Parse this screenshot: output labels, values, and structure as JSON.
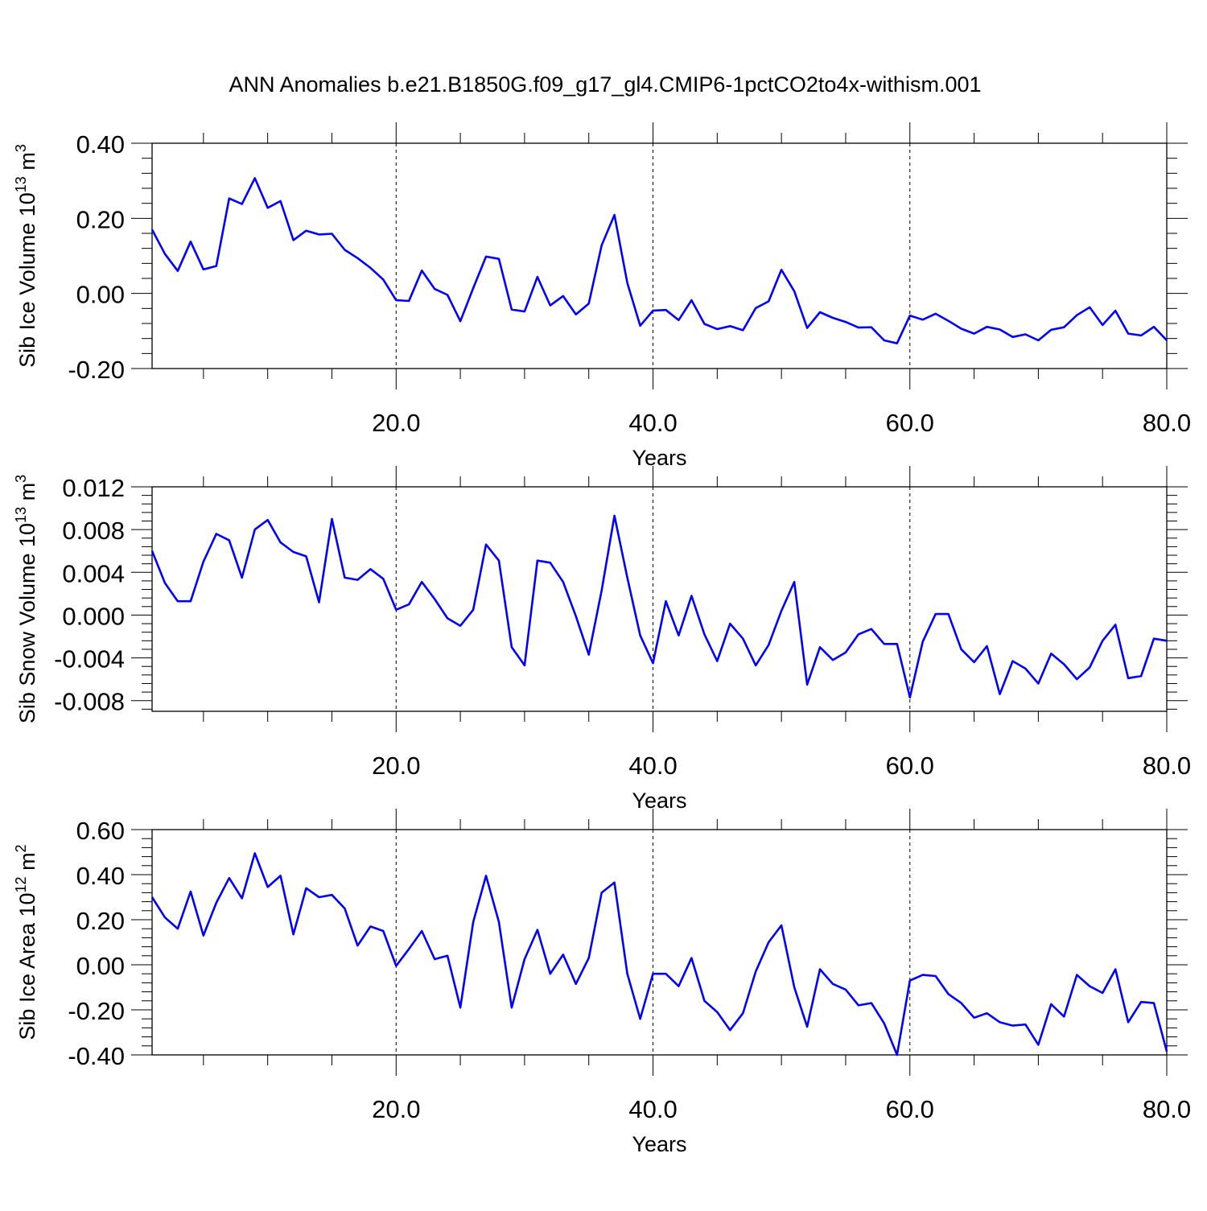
{
  "title": "ANN Anomalies b.e21.B1850G.f09_g17_gl4.CMIP6-1pctCO2to4x-withism.001",
  "line_color": "#0000ff",
  "chart_data": [
    {
      "type": "line",
      "ylabel": {
        "main": "Sib Ice Volume 10",
        "sup": "13",
        "unit": " m",
        "unit_sup": "3"
      },
      "xlabel": "Years",
      "xlim": [
        1,
        80
      ],
      "ylim": [
        -0.2,
        0.4
      ],
      "yticks": [
        -0.2,
        0.0,
        0.2,
        0.4
      ],
      "ytick_labels": [
        "-0.20",
        "0.00",
        "0.20",
        "0.40"
      ],
      "xticks": [
        20,
        40,
        60,
        80
      ],
      "xtick_labels": [
        "20.0",
        "40.0",
        "60.0",
        "80.0"
      ],
      "grid": "vertical dashed at major x ticks",
      "series": [
        {
          "x": [
            1,
            2,
            3,
            4,
            5,
            6,
            7,
            8,
            9,
            10,
            11,
            12,
            13,
            14,
            15,
            16,
            17,
            18,
            19,
            20,
            21,
            22,
            23,
            24,
            25,
            26,
            27,
            28,
            29,
            30,
            31,
            32,
            33,
            34,
            35,
            36,
            37,
            38,
            39,
            40,
            41,
            42,
            43,
            44,
            45,
            46,
            47,
            48,
            49,
            50,
            51,
            52,
            53,
            54,
            55,
            56,
            57,
            58,
            59,
            60,
            61,
            62,
            63,
            64,
            65,
            66,
            67,
            68,
            69,
            70,
            71,
            72,
            73,
            74,
            75,
            76,
            77,
            78,
            79,
            80
          ],
          "y": [
            0.17,
            0.105,
            0.06,
            0.138,
            0.064,
            0.073,
            0.253,
            0.238,
            0.307,
            0.228,
            0.246,
            0.142,
            0.167,
            0.157,
            0.159,
            0.116,
            0.094,
            0.068,
            0.037,
            -0.018,
            -0.02,
            0.061,
            0.012,
            -0.004,
            -0.074,
            0.014,
            0.098,
            0.092,
            -0.043,
            -0.048,
            0.044,
            -0.032,
            -0.007,
            -0.056,
            -0.027,
            0.128,
            0.209,
            0.028,
            -0.086,
            -0.046,
            -0.044,
            -0.071,
            -0.018,
            -0.081,
            -0.095,
            -0.087,
            -0.098,
            -0.039,
            -0.021,
            0.063,
            0.006,
            -0.092,
            -0.05,
            -0.065,
            -0.076,
            -0.091,
            -0.09,
            -0.125,
            -0.133,
            -0.059,
            -0.07,
            -0.054,
            -0.073,
            -0.094,
            -0.107,
            -0.089,
            -0.096,
            -0.116,
            -0.109,
            -0.125,
            -0.097,
            -0.09,
            -0.058,
            -0.037,
            -0.084,
            -0.046,
            -0.107,
            -0.112,
            -0.089,
            -0.125
          ]
        }
      ]
    },
    {
      "type": "line",
      "ylabel": {
        "main": "Sib Snow Volume 10",
        "sup": "13",
        "unit": " m",
        "unit_sup": "3"
      },
      "xlabel": "Years",
      "xlim": [
        1,
        80
      ],
      "ylim": [
        -0.009,
        0.012
      ],
      "yticks": [
        -0.008,
        -0.004,
        0.0,
        0.004,
        0.008,
        0.012
      ],
      "ytick_labels": [
        "-0.008",
        "-0.004",
        "0.000",
        "0.004",
        "0.008",
        "0.012"
      ],
      "xticks": [
        20,
        40,
        60,
        80
      ],
      "xtick_labels": [
        "20.0",
        "40.0",
        "60.0",
        "80.0"
      ],
      "grid": "vertical dashed at major x ticks",
      "series": [
        {
          "x": [
            1,
            2,
            3,
            4,
            5,
            6,
            7,
            8,
            9,
            10,
            11,
            12,
            13,
            14,
            15,
            16,
            17,
            18,
            19,
            20,
            21,
            22,
            23,
            24,
            25,
            26,
            27,
            28,
            29,
            30,
            31,
            32,
            33,
            34,
            35,
            36,
            37,
            38,
            39,
            40,
            41,
            42,
            43,
            44,
            45,
            46,
            47,
            48,
            49,
            50,
            51,
            52,
            53,
            54,
            55,
            56,
            57,
            58,
            59,
            60,
            61,
            62,
            63,
            64,
            65,
            66,
            67,
            68,
            69,
            70,
            71,
            72,
            73,
            74,
            75,
            76,
            77,
            78,
            79,
            80
          ],
          "y": [
            0.006,
            0.003,
            0.0013,
            0.0013,
            0.005,
            0.0076,
            0.007,
            0.0035,
            0.008,
            0.0089,
            0.0068,
            0.0059,
            0.0055,
            0.0012,
            0.009,
            0.0035,
            0.0033,
            0.0043,
            0.0034,
            0.0005,
            0.001,
            0.0031,
            0.0015,
            -0.0003,
            -0.001,
            0.0005,
            0.0066,
            0.0051,
            -0.003,
            -0.0047,
            0.0051,
            0.0049,
            0.0031,
            -0.0001,
            -0.0037,
            0.0023,
            0.0093,
            0.0035,
            -0.0019,
            -0.0045,
            0.0013,
            -0.0019,
            0.0018,
            -0.0018,
            -0.0043,
            -0.0008,
            -0.0022,
            -0.0047,
            -0.0028,
            0.0004,
            0.0031,
            -0.0065,
            -0.003,
            -0.0042,
            -0.0035,
            -0.0018,
            -0.0013,
            -0.0027,
            -0.0027,
            -0.0077,
            -0.0025,
            0.0001,
            0.0001,
            -0.0032,
            -0.0044,
            -0.0029,
            -0.0074,
            -0.0043,
            -0.005,
            -0.0064,
            -0.0036,
            -0.0046,
            -0.006,
            -0.0049,
            -0.0024,
            -0.0009,
            -0.0059,
            -0.0057,
            -0.0022,
            -0.0024
          ]
        }
      ]
    },
    {
      "type": "line",
      "ylabel": {
        "main": "Sib Ice Area 10",
        "sup": "12",
        "unit": " m",
        "unit_sup": "2"
      },
      "xlabel": "Years",
      "xlim": [
        1,
        80
      ],
      "ylim": [
        -0.4,
        0.6
      ],
      "yticks": [
        -0.4,
        -0.2,
        0.0,
        0.2,
        0.4,
        0.6
      ],
      "ytick_labels": [
        "-0.40",
        "-0.20",
        "0.00",
        "0.20",
        "0.40",
        "0.60"
      ],
      "xticks": [
        20,
        40,
        60,
        80
      ],
      "xtick_labels": [
        "20.0",
        "40.0",
        "60.0",
        "80.0"
      ],
      "grid": "vertical dashed at major x ticks",
      "series": [
        {
          "x": [
            1,
            2,
            3,
            4,
            5,
            6,
            7,
            8,
            9,
            10,
            11,
            12,
            13,
            14,
            15,
            16,
            17,
            18,
            19,
            20,
            21,
            22,
            23,
            24,
            25,
            26,
            27,
            28,
            29,
            30,
            31,
            32,
            33,
            34,
            35,
            36,
            37,
            38,
            39,
            40,
            41,
            42,
            43,
            44,
            45,
            46,
            47,
            48,
            49,
            50,
            51,
            52,
            53,
            54,
            55,
            56,
            57,
            58,
            59,
            60,
            61,
            62,
            63,
            64,
            65,
            66,
            67,
            68,
            69,
            70,
            71,
            72,
            73,
            74,
            75,
            76,
            77,
            78,
            79,
            80
          ],
          "y": [
            0.3,
            0.21,
            0.16,
            0.325,
            0.13,
            0.275,
            0.385,
            0.295,
            0.495,
            0.345,
            0.395,
            0.135,
            0.34,
            0.3,
            0.31,
            0.25,
            0.085,
            0.17,
            0.15,
            -0.005,
            0.07,
            0.15,
            0.025,
            0.04,
            -0.19,
            0.19,
            0.395,
            0.19,
            -0.19,
            0.025,
            0.155,
            -0.04,
            0.045,
            -0.085,
            0.03,
            0.32,
            0.365,
            -0.04,
            -0.24,
            -0.04,
            -0.04,
            -0.095,
            0.03,
            -0.16,
            -0.21,
            -0.29,
            -0.215,
            -0.03,
            0.1,
            0.175,
            -0.1,
            -0.275,
            -0.02,
            -0.085,
            -0.11,
            -0.18,
            -0.17,
            -0.26,
            -0.4,
            -0.07,
            -0.045,
            -0.05,
            -0.13,
            -0.17,
            -0.235,
            -0.215,
            -0.255,
            -0.27,
            -0.265,
            -0.355,
            -0.175,
            -0.23,
            -0.045,
            -0.095,
            -0.125,
            -0.02,
            -0.255,
            -0.165,
            -0.17,
            -0.385
          ]
        }
      ]
    }
  ]
}
